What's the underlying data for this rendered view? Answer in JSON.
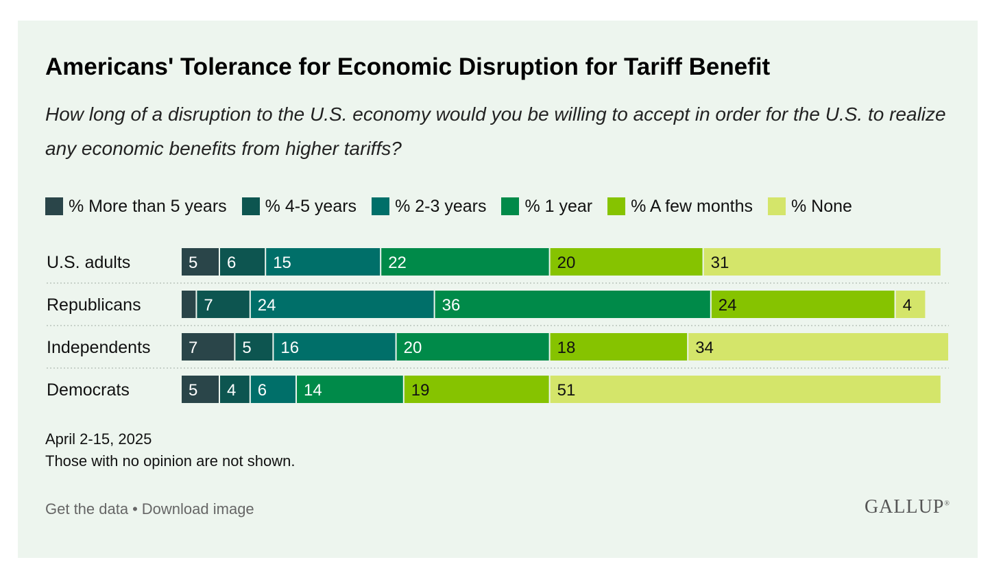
{
  "title": "Americans' Tolerance for Economic Disruption for Tariff Benefit",
  "subtitle": "How long of a disruption to the U.S. economy would you be willing to accept in order for the U.S. to realize any economic benefits from higher tariffs?",
  "notes": {
    "date": "April 2-15, 2025",
    "text": "Those with no opinion are not shown."
  },
  "footer": {
    "get_data": "Get the data",
    "separator": "•",
    "download": "Download image",
    "logo": "GALLUP",
    "logo_mark": "®"
  },
  "chart_data": {
    "type": "bar",
    "orientation": "horizontal",
    "stacked": true,
    "categories": [
      "U.S. adults",
      "Republicans",
      "Independents",
      "Democrats"
    ],
    "series": [
      {
        "name": "% More than 5 years",
        "color": "#2a4549",
        "values": [
          5,
          2,
          7,
          5
        ],
        "labels": [
          "5",
          "",
          "7",
          "5"
        ]
      },
      {
        "name": "% 4-5 years",
        "color": "#0d5550",
        "values": [
          6,
          7,
          5,
          4
        ],
        "labels": [
          "6",
          "7",
          "5",
          "4"
        ]
      },
      {
        "name": "% 2-3 years",
        "color": "#006f69",
        "values": [
          15,
          24,
          16,
          6
        ],
        "labels": [
          "15",
          "24",
          "16",
          "6"
        ]
      },
      {
        "name": "% 1 year",
        "color": "#008a49",
        "values": [
          22,
          36,
          20,
          14
        ],
        "labels": [
          "22",
          "36",
          "20",
          "14"
        ]
      },
      {
        "name": "% A few months",
        "color": "#86c300",
        "values": [
          20,
          24,
          18,
          19
        ],
        "labels": [
          "20",
          "24",
          "18",
          "19"
        ]
      },
      {
        "name": "% None",
        "color": "#d4e56a",
        "values": [
          31,
          4,
          34,
          51
        ],
        "labels": [
          "31",
          "4",
          "34",
          "51"
        ]
      }
    ],
    "xlim": [
      0,
      100
    ],
    "grid": false,
    "legend_position": "top"
  }
}
